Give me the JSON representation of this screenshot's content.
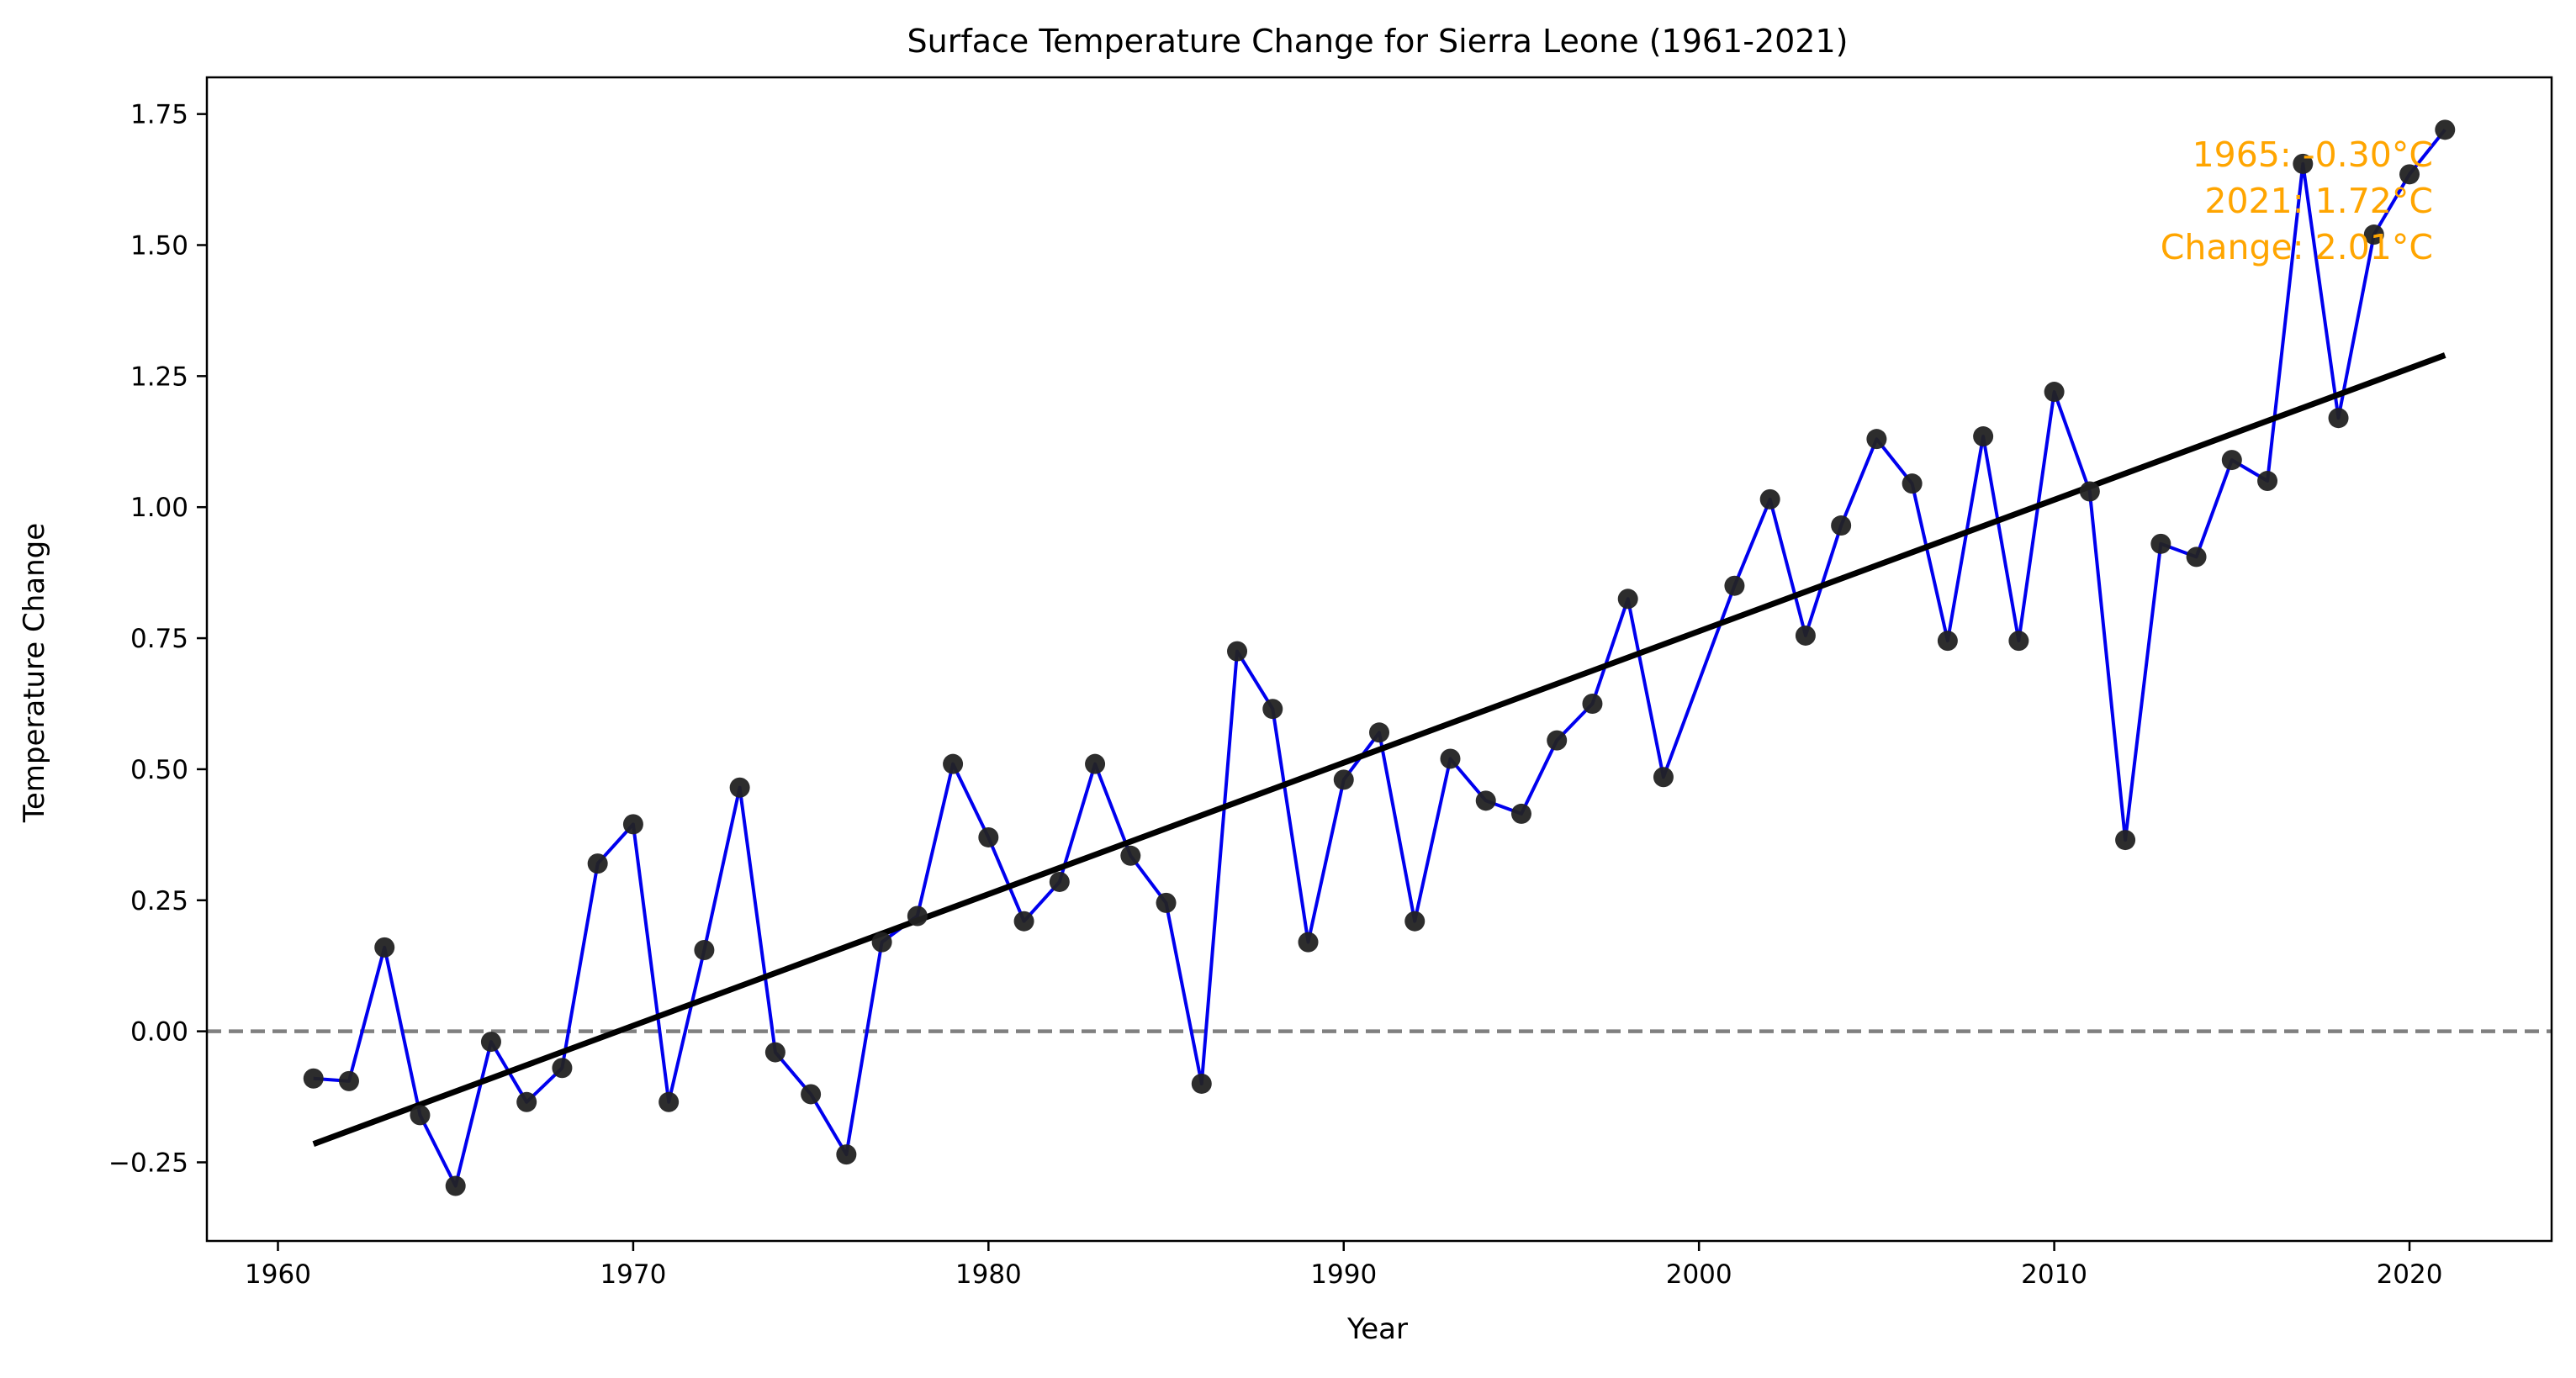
{
  "chart_data": {
    "type": "line",
    "title": "Surface Temperature Change for Sierra Leone (1961-2021)",
    "xlabel": "Year",
    "ylabel": "Temperature Change",
    "xlim": [
      1958,
      2024
    ],
    "ylim": [
      -0.4,
      1.82
    ],
    "x_ticks": [
      1960,
      1970,
      1980,
      1990,
      2000,
      2010,
      2020
    ],
    "y_ticks": [
      -0.25,
      0.0,
      0.25,
      0.5,
      0.75,
      1.0,
      1.25,
      1.5,
      1.75
    ],
    "y_tick_labels": [
      "−0.25",
      "0.00",
      "0.25",
      "0.50",
      "0.75",
      "1.00",
      "1.25",
      "1.50",
      "1.75"
    ],
    "grid": false,
    "x": [
      1961,
      1962,
      1963,
      1964,
      1965,
      1966,
      1967,
      1968,
      1969,
      1970,
      1971,
      1972,
      1973,
      1974,
      1975,
      1976,
      1977,
      1978,
      1979,
      1980,
      1981,
      1982,
      1983,
      1984,
      1985,
      1986,
      1987,
      1988,
      1989,
      1990,
      1991,
      1992,
      1993,
      1994,
      1995,
      1996,
      1997,
      1998,
      1999,
      2001,
      2002,
      2003,
      2004,
      2005,
      2006,
      2007,
      2008,
      2009,
      2010,
      2011,
      2012,
      2013,
      2014,
      2015,
      2016,
      2017,
      2018,
      2019,
      2020,
      2021
    ],
    "series": [
      {
        "values": [
          -0.09,
          -0.095,
          0.16,
          -0.16,
          -0.295,
          -0.02,
          -0.135,
          -0.07,
          0.32,
          0.395,
          -0.135,
          0.155,
          0.465,
          -0.04,
          -0.12,
          -0.235,
          0.17,
          0.22,
          0.51,
          0.37,
          0.21,
          0.285,
          0.51,
          0.335,
          0.245,
          -0.1,
          0.725,
          0.615,
          0.17,
          0.48,
          0.57,
          0.21,
          0.52,
          0.44,
          0.415,
          0.555,
          0.625,
          0.825,
          0.485,
          0.85,
          1.015,
          0.755,
          0.965,
          1.13,
          1.045,
          0.745,
          1.135,
          0.745,
          1.22,
          1.03,
          0.365,
          0.93,
          0.905,
          1.09,
          1.05,
          1.655,
          1.17,
          1.52,
          1.635,
          1.72
        ],
        "line_color": "#0000ee",
        "marker_color": "#222222"
      }
    ],
    "trend_line": {
      "x": [
        1961,
        2021
      ],
      "y": [
        -0.215,
        1.29
      ],
      "color": "#000000"
    },
    "reference_line": {
      "y": 0.0,
      "color": "#808080",
      "style": "dashed"
    },
    "annotation": {
      "lines": [
        "1965: -0.30°C",
        "2021: 1.72°C",
        "Change: 2.01°C"
      ],
      "color": "#ffa500",
      "placement": "top-right"
    }
  }
}
